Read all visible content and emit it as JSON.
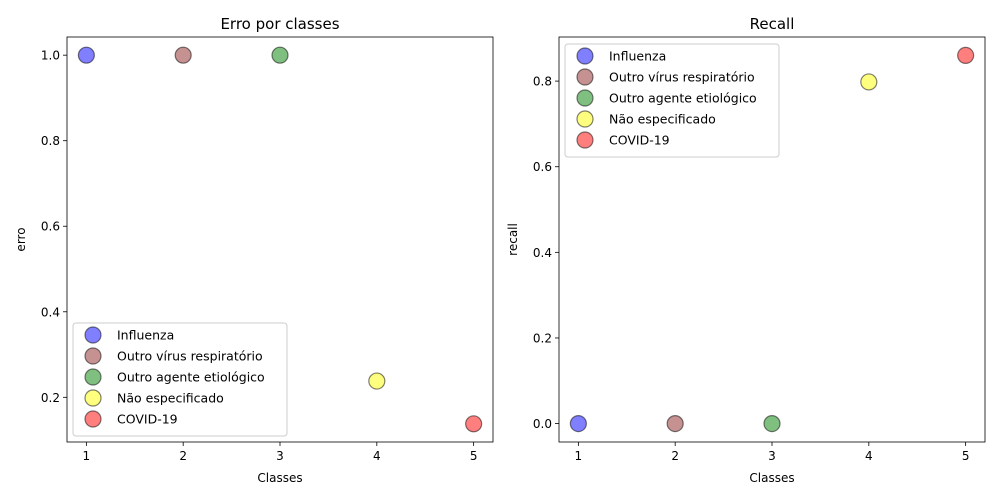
{
  "chart_data": [
    {
      "type": "scatter",
      "title": "Erro por classes",
      "xlabel": "Classes",
      "ylabel": "erro",
      "xlim": [
        0.8,
        5.2
      ],
      "ylim": [
        0.0955,
        1.0425
      ],
      "x_ticks": [
        1,
        2,
        3,
        4,
        5
      ],
      "y_ticks": [
        0.2,
        0.4,
        0.6,
        0.8,
        1.0
      ],
      "legend_position": "lower-left",
      "grid": false,
      "series": [
        {
          "name": "Influenza",
          "color": "#0000ff",
          "x": [
            1
          ],
          "y": [
            1.0
          ]
        },
        {
          "name": "Outro vírus respiratório",
          "color": "#8b2323",
          "x": [
            2
          ],
          "y": [
            1.0
          ]
        },
        {
          "name": "Outro agente etiológico",
          "color": "#008000",
          "x": [
            3
          ],
          "y": [
            1.0
          ]
        },
        {
          "name": "Não especificado",
          "color": "#ffff00",
          "x": [
            4
          ],
          "y": [
            0.238
          ]
        },
        {
          "name": "COVID-19",
          "color": "#ff0000",
          "x": [
            5
          ],
          "y": [
            0.138
          ]
        }
      ]
    },
    {
      "type": "scatter",
      "title": "Recall",
      "xlabel": "Classes",
      "ylabel": "recall",
      "xlim": [
        0.8,
        5.2
      ],
      "ylim": [
        -0.043,
        0.903
      ],
      "x_ticks": [
        1,
        2,
        3,
        4,
        5
      ],
      "y_ticks": [
        0.0,
        0.2,
        0.4,
        0.6,
        0.8
      ],
      "legend_position": "upper-left",
      "grid": false,
      "series": [
        {
          "name": "Influenza",
          "color": "#0000ff",
          "x": [
            1
          ],
          "y": [
            0.0
          ]
        },
        {
          "name": "Outro vírus respiratório",
          "color": "#8b2323",
          "x": [
            2
          ],
          "y": [
            0.0
          ]
        },
        {
          "name": "Outro agente etiológico",
          "color": "#008000",
          "x": [
            3
          ],
          "y": [
            0.0
          ]
        },
        {
          "name": "Não especificado",
          "color": "#ffff00",
          "x": [
            4
          ],
          "y": [
            0.798
          ]
        },
        {
          "name": "COVID-19",
          "color": "#ff0000",
          "x": [
            5
          ],
          "y": [
            0.86
          ]
        }
      ]
    }
  ]
}
